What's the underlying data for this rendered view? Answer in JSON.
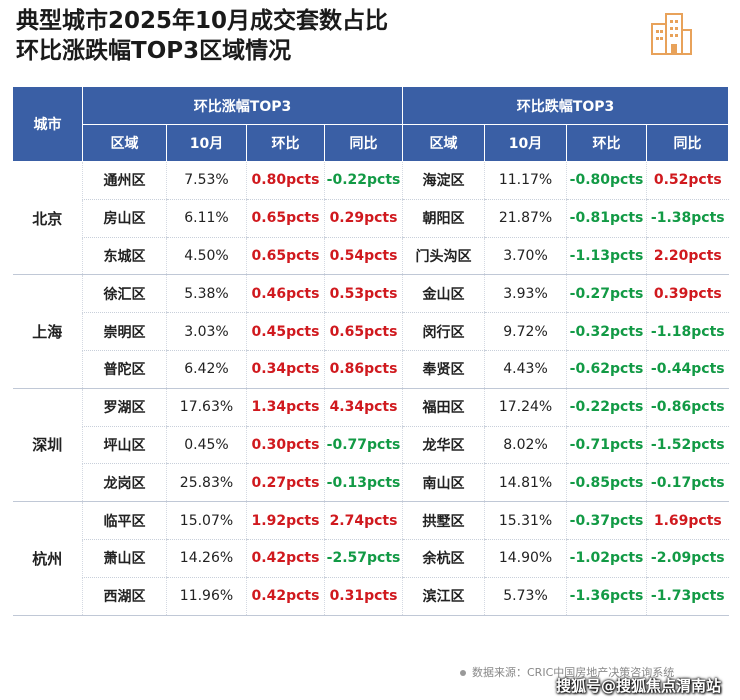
{
  "title_line1": "典型城市2025年10月成交套数占比",
  "title_line2": "环比涨跌幅TOP3区域情况",
  "chart_data": {
    "type": "table",
    "header": {
      "city": "城市",
      "group_up": "环比涨幅TOP3",
      "group_down": "环比跌幅TOP3",
      "cols": [
        "区域",
        "10月",
        "环比",
        "同比"
      ]
    },
    "rows": [
      {
        "city": "北京",
        "up": [
          "通州区",
          "7.53%",
          "0.80pcts",
          "-0.22pcts"
        ],
        "down": [
          "海淀区",
          "11.17%",
          "-0.80pcts",
          "0.52pcts"
        ]
      },
      {
        "city": "北京",
        "up": [
          "房山区",
          "6.11%",
          "0.65pcts",
          "0.29pcts"
        ],
        "down": [
          "朝阳区",
          "21.87%",
          "-0.81pcts",
          "-1.38pcts"
        ]
      },
      {
        "city": "北京",
        "up": [
          "东城区",
          "4.50%",
          "0.65pcts",
          "0.54pcts"
        ],
        "down": [
          "门头沟区",
          "3.70%",
          "-1.13pcts",
          "2.20pcts"
        ]
      },
      {
        "city": "上海",
        "up": [
          "徐汇区",
          "5.38%",
          "0.46pcts",
          "0.53pcts"
        ],
        "down": [
          "金山区",
          "3.93%",
          "-0.27pcts",
          "0.39pcts"
        ]
      },
      {
        "city": "上海",
        "up": [
          "崇明区",
          "3.03%",
          "0.45pcts",
          "0.65pcts"
        ],
        "down": [
          "闵行区",
          "9.72%",
          "-0.32pcts",
          "-1.18pcts"
        ]
      },
      {
        "city": "上海",
        "up": [
          "普陀区",
          "6.42%",
          "0.34pcts",
          "0.86pcts"
        ],
        "down": [
          "奉贤区",
          "4.43%",
          "-0.62pcts",
          "-0.44pcts"
        ]
      },
      {
        "city": "深圳",
        "up": [
          "罗湖区",
          "17.63%",
          "1.34pcts",
          "4.34pcts"
        ],
        "down": [
          "福田区",
          "17.24%",
          "-0.22pcts",
          "-0.86pcts"
        ]
      },
      {
        "city": "深圳",
        "up": [
          "坪山区",
          "0.45%",
          "0.30pcts",
          "-0.77pcts"
        ],
        "down": [
          "龙华区",
          "8.02%",
          "-0.71pcts",
          "-1.52pcts"
        ]
      },
      {
        "city": "深圳",
        "up": [
          "龙岗区",
          "25.83%",
          "0.27pcts",
          "-0.13pcts"
        ],
        "down": [
          "南山区",
          "14.81%",
          "-0.85pcts",
          "-0.17pcts"
        ]
      },
      {
        "city": "杭州",
        "up": [
          "临平区",
          "15.07%",
          "1.92pcts",
          "2.74pcts"
        ],
        "down": [
          "拱墅区",
          "15.31%",
          "-0.37pcts",
          "1.69pcts"
        ]
      },
      {
        "city": "杭州",
        "up": [
          "萧山区",
          "14.26%",
          "0.42pcts",
          "-2.57pcts"
        ],
        "down": [
          "余杭区",
          "14.90%",
          "-1.02pcts",
          "-2.09pcts"
        ]
      },
      {
        "city": "杭州",
        "up": [
          "西湖区",
          "11.96%",
          "0.42pcts",
          "0.31pcts"
        ],
        "down": [
          "滨江区",
          "5.73%",
          "-1.36pcts",
          "-1.73pcts"
        ]
      }
    ]
  },
  "colors": {
    "header_bg": "#3a5fa5",
    "positive": "#d0191e",
    "negative": "#129a45"
  },
  "source": "数据来源：CRIC中国房地产决策咨询系统",
  "watermark": "搜狐号@搜狐焦点渭南站",
  "icons": {
    "logo": "building-logo-icon"
  }
}
